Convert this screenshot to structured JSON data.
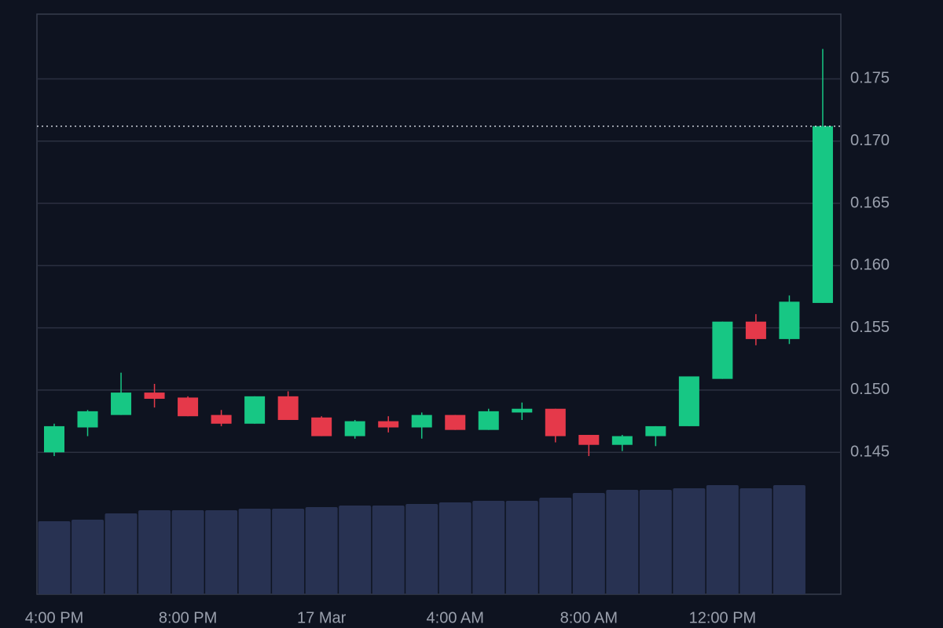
{
  "chart_data": {
    "type": "candlestick",
    "categories": [
      "4:00 PM",
      null,
      null,
      null,
      "8:00 PM",
      null,
      null,
      null,
      "17 Mar",
      null,
      null,
      null,
      "4:00 AM",
      null,
      null,
      null,
      "8:00 AM",
      null,
      null,
      null,
      "12:00 PM",
      null,
      null,
      null
    ],
    "open": [
      0.145,
      0.147,
      0.148,
      0.1498,
      0.1494,
      0.148,
      0.1473,
      0.1495,
      0.1478,
      0.1463,
      0.1475,
      0.147,
      0.148,
      0.1468,
      0.1482,
      0.1485,
      0.1464,
      0.1456,
      0.1463,
      0.1471,
      0.1509,
      0.1555,
      0.1541,
      0.157
    ],
    "high": [
      0.1473,
      0.1484,
      0.1514,
      0.1505,
      0.1495,
      0.1484,
      0.1495,
      0.1499,
      0.1479,
      0.1476,
      0.1479,
      0.1482,
      0.148,
      0.1485,
      0.149,
      0.1485,
      0.1464,
      0.1464,
      0.1471,
      0.1511,
      0.1555,
      0.1561,
      0.1576,
      0.1774
    ],
    "low": [
      0.1447,
      0.1463,
      0.148,
      0.1486,
      0.1479,
      0.1471,
      0.1473,
      0.1476,
      0.1463,
      0.1461,
      0.1466,
      0.1461,
      0.1468,
      0.1468,
      0.1476,
      0.1458,
      0.1447,
      0.1451,
      0.1455,
      0.1471,
      0.1509,
      0.1536,
      0.1537,
      0.157
    ],
    "close": [
      0.1471,
      0.1483,
      0.1498,
      0.1493,
      0.1479,
      0.1473,
      0.1495,
      0.1476,
      0.1463,
      0.1475,
      0.147,
      0.148,
      0.1468,
      0.1483,
      0.1485,
      0.1463,
      0.1456,
      0.1463,
      0.1471,
      0.1511,
      0.1555,
      0.1541,
      0.1571,
      0.1712
    ],
    "volume": [
      93,
      95,
      103,
      107,
      107,
      107,
      109,
      109,
      111,
      113,
      113,
      115,
      117,
      119,
      119,
      123,
      129,
      133,
      133,
      135,
      139,
      135,
      139,
      null
    ],
    "up_color": "#17c784",
    "down_color": "#e5394a",
    "volume_color": "#283252",
    "ylim": [
      0.1336,
      0.1802
    ],
    "yticks": [
      0.145,
      {
        "value": 0.15,
        "label": "0.150"
      },
      0.155,
      {
        "value": 0.16,
        "label": "0.160"
      },
      0.165,
      {
        "value": 0.17,
        "label": "0.170"
      },
      0.175
    ],
    "volume_lim": [
      0,
      180
    ],
    "grid": true,
    "last_price_line": true
  }
}
